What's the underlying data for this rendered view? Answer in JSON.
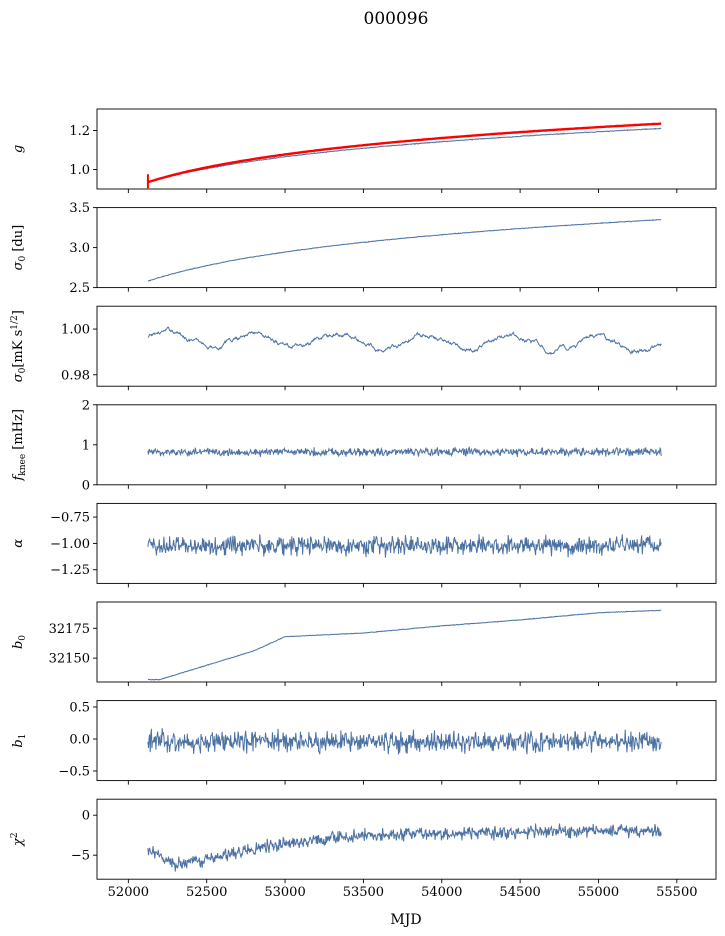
{
  "figure": {
    "title": "000096",
    "xlabel": "MJD"
  },
  "colors": {
    "series": "#4c72a4",
    "fit": "#ff0000",
    "axis": "#000000"
  },
  "chart_data": {
    "type": "line",
    "title": "000096",
    "x_range": [
      52125,
      55400
    ],
    "xlim": [
      51800,
      55750
    ],
    "xticks": [
      52000,
      52500,
      53000,
      53500,
      54000,
      54500,
      55000,
      55500
    ],
    "xticklabels": [
      "52000",
      "52500",
      "53000",
      "53500",
      "54000",
      "54500",
      "55000",
      "55500"
    ],
    "xlabel": "MJD",
    "panels": [
      {
        "ylabel_main": "g",
        "ylabel_sub": "",
        "ylabel_rest": "",
        "ylim": [
          0.9,
          1.31
        ],
        "yticks": [
          1.0,
          1.2
        ],
        "yticklabels": [
          "1.0",
          "1.2"
        ],
        "shape": "log",
        "start": 0.935,
        "end": 1.21,
        "noise": 0.002,
        "fit": {
          "start": 0.935,
          "end": 1.235
        }
      },
      {
        "ylabel_main": "σ",
        "ylabel_sub": "0",
        "ylabel_rest": " [du]",
        "ylim": [
          2.5,
          3.5
        ],
        "yticks": [
          2.5,
          3.0,
          3.5
        ],
        "yticklabels": [
          "2.5",
          "3.0",
          "3.5"
        ],
        "shape": "log",
        "start": 2.58,
        "end": 3.35,
        "noise": 0.004
      },
      {
        "ylabel_main": "σ",
        "ylabel_sub": "0",
        "ylabel_rest": "[mK s",
        "ylabel_sup": "1/2",
        "ylabel_tail": "]",
        "ylim": [
          0.975,
          1.01
        ],
        "yticks": [
          0.98,
          1.0
        ],
        "yticklabels": [
          "0.98",
          "1.00"
        ],
        "shape": "wave",
        "start": 0.995,
        "end": 0.992,
        "mean": 0.996,
        "amp": 0.003,
        "noise": 0.0012
      },
      {
        "ylabel_main": "f",
        "ylabel_sub": "knee",
        "ylabel_rest": " [mHz]",
        "ylim": [
          0,
          2
        ],
        "yticks": [
          0,
          1,
          2
        ],
        "yticklabels": [
          "0",
          "1",
          "2"
        ],
        "shape": "flat",
        "mean": 0.82,
        "noise": 0.1
      },
      {
        "ylabel_main": "α",
        "ylabel_sub": "",
        "ylabel_rest": "",
        "ylim": [
          -1.38,
          -0.62
        ],
        "yticks": [
          -1.25,
          -1.0,
          -0.75
        ],
        "yticklabels": [
          "−1.25",
          "−1.00",
          "−0.75"
        ],
        "shape": "flat",
        "mean": -1.02,
        "noise": 0.09
      },
      {
        "ylabel_main": "b",
        "ylabel_sub": "0",
        "ylabel_rest": "",
        "ylim": [
          32130,
          32197
        ],
        "yticks": [
          32150,
          32175
        ],
        "yticklabels": [
          "32150",
          "32175"
        ],
        "shape": "piecewise",
        "noise": 0.25,
        "knots": [
          [
            52125,
            32132
          ],
          [
            52200,
            32132
          ],
          [
            52500,
            32144
          ],
          [
            52800,
            32156
          ],
          [
            53000,
            32168
          ],
          [
            53500,
            32171
          ],
          [
            54000,
            32177
          ],
          [
            54500,
            32182
          ],
          [
            55000,
            32188
          ],
          [
            55400,
            32190
          ]
        ]
      },
      {
        "ylabel_main": "b",
        "ylabel_sub": "1",
        "ylabel_rest": "",
        "ylim": [
          -0.65,
          0.6
        ],
        "yticks": [
          -0.5,
          0.0,
          0.5
        ],
        "yticklabels": [
          "−0.5",
          "0.0",
          "0.5"
        ],
        "shape": "flat",
        "mean": -0.04,
        "noise": 0.16
      },
      {
        "ylabel_main": "χ",
        "ylabel_sub": "",
        "ylabel_rest": "",
        "ylabel_sup": "2",
        "ylim": [
          -8,
          2
        ],
        "yticks": [
          -5,
          0
        ],
        "yticklabels": [
          "−5",
          "0"
        ],
        "shape": "piecewise",
        "noise": 0.75,
        "knots": [
          [
            52125,
            -4.5
          ],
          [
            52300,
            -6.2
          ],
          [
            52600,
            -5.0
          ],
          [
            53000,
            -3.5
          ],
          [
            53500,
            -2.5
          ],
          [
            54000,
            -2.3
          ],
          [
            54500,
            -2.1
          ],
          [
            55000,
            -1.9
          ],
          [
            55400,
            -2.0
          ]
        ]
      }
    ]
  }
}
